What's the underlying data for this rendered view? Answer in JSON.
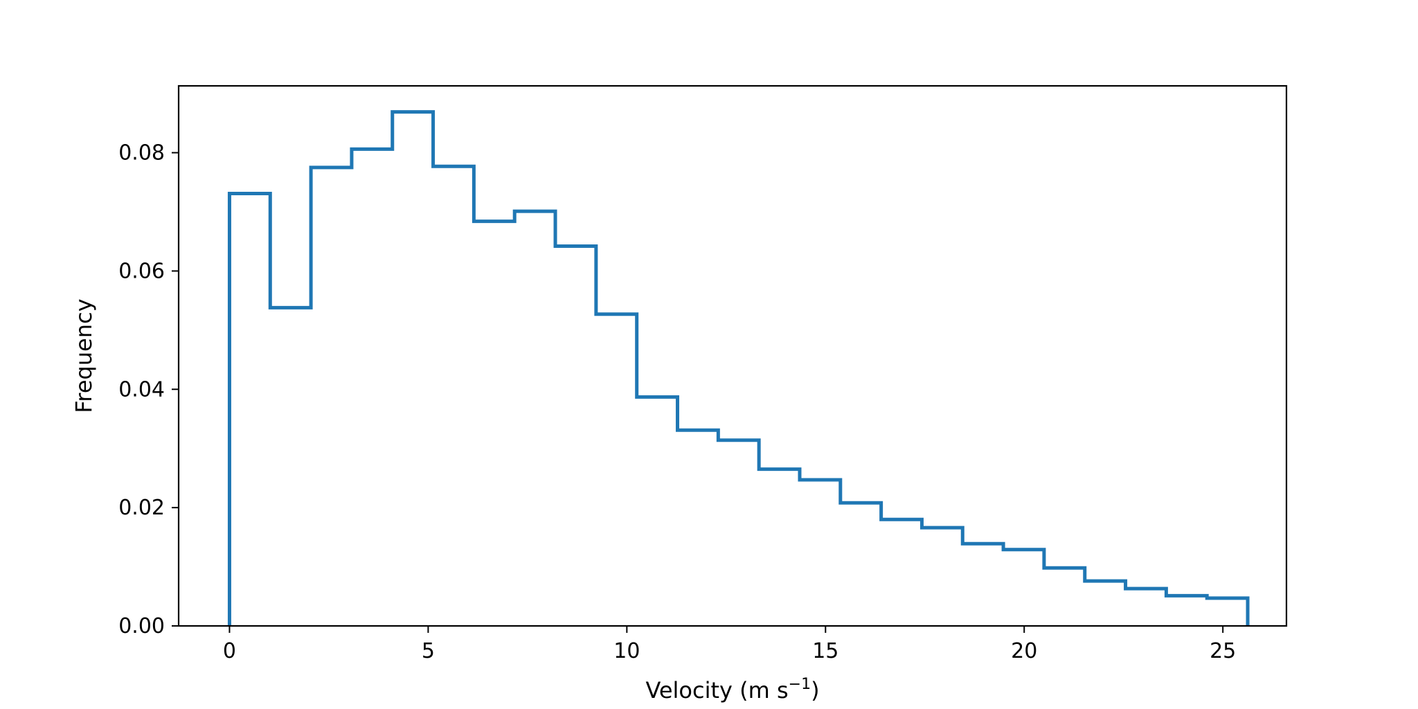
{
  "chart_data": {
    "type": "histogram",
    "histtype": "step",
    "title": "",
    "xlabel": "Velocity (m s",
    "xlabel_superscript": "−1",
    "xlabel_suffix": ")",
    "ylabel": "Frequency",
    "xlim": [
      -1.28,
      26.6
    ],
    "ylim": [
      0,
      0.0913
    ],
    "xticks": [
      0,
      5,
      10,
      15,
      20,
      25
    ],
    "xtick_labels": [
      "0",
      "5",
      "10",
      "15",
      "20",
      "25"
    ],
    "yticks": [
      0,
      0.02,
      0.04,
      0.06,
      0.08
    ],
    "ytick_labels": [
      "0.00",
      "0.02",
      "0.04",
      "0.06",
      "0.08"
    ],
    "bin_edges": [
      0.0,
      1.025,
      2.05,
      3.075,
      4.1,
      5.125,
      6.15,
      7.175,
      8.2,
      9.225,
      10.25,
      11.275,
      12.3,
      13.325,
      14.35,
      15.375,
      16.4,
      17.425,
      18.45,
      19.475,
      20.5,
      21.525,
      22.55,
      23.575,
      24.6,
      25.625
    ],
    "values": [
      0.0731,
      0.0538,
      0.0775,
      0.0806,
      0.0869,
      0.0777,
      0.0684,
      0.0701,
      0.0642,
      0.0527,
      0.0387,
      0.0331,
      0.0314,
      0.0265,
      0.0247,
      0.0208,
      0.018,
      0.0166,
      0.0139,
      0.0129,
      0.0098,
      0.0076,
      0.0063,
      0.0051,
      0.0047
    ],
    "grid": false,
    "legend": "none",
    "colors": {
      "series": "#1f77b4",
      "axes": "#000000",
      "background": "#ffffff"
    }
  }
}
